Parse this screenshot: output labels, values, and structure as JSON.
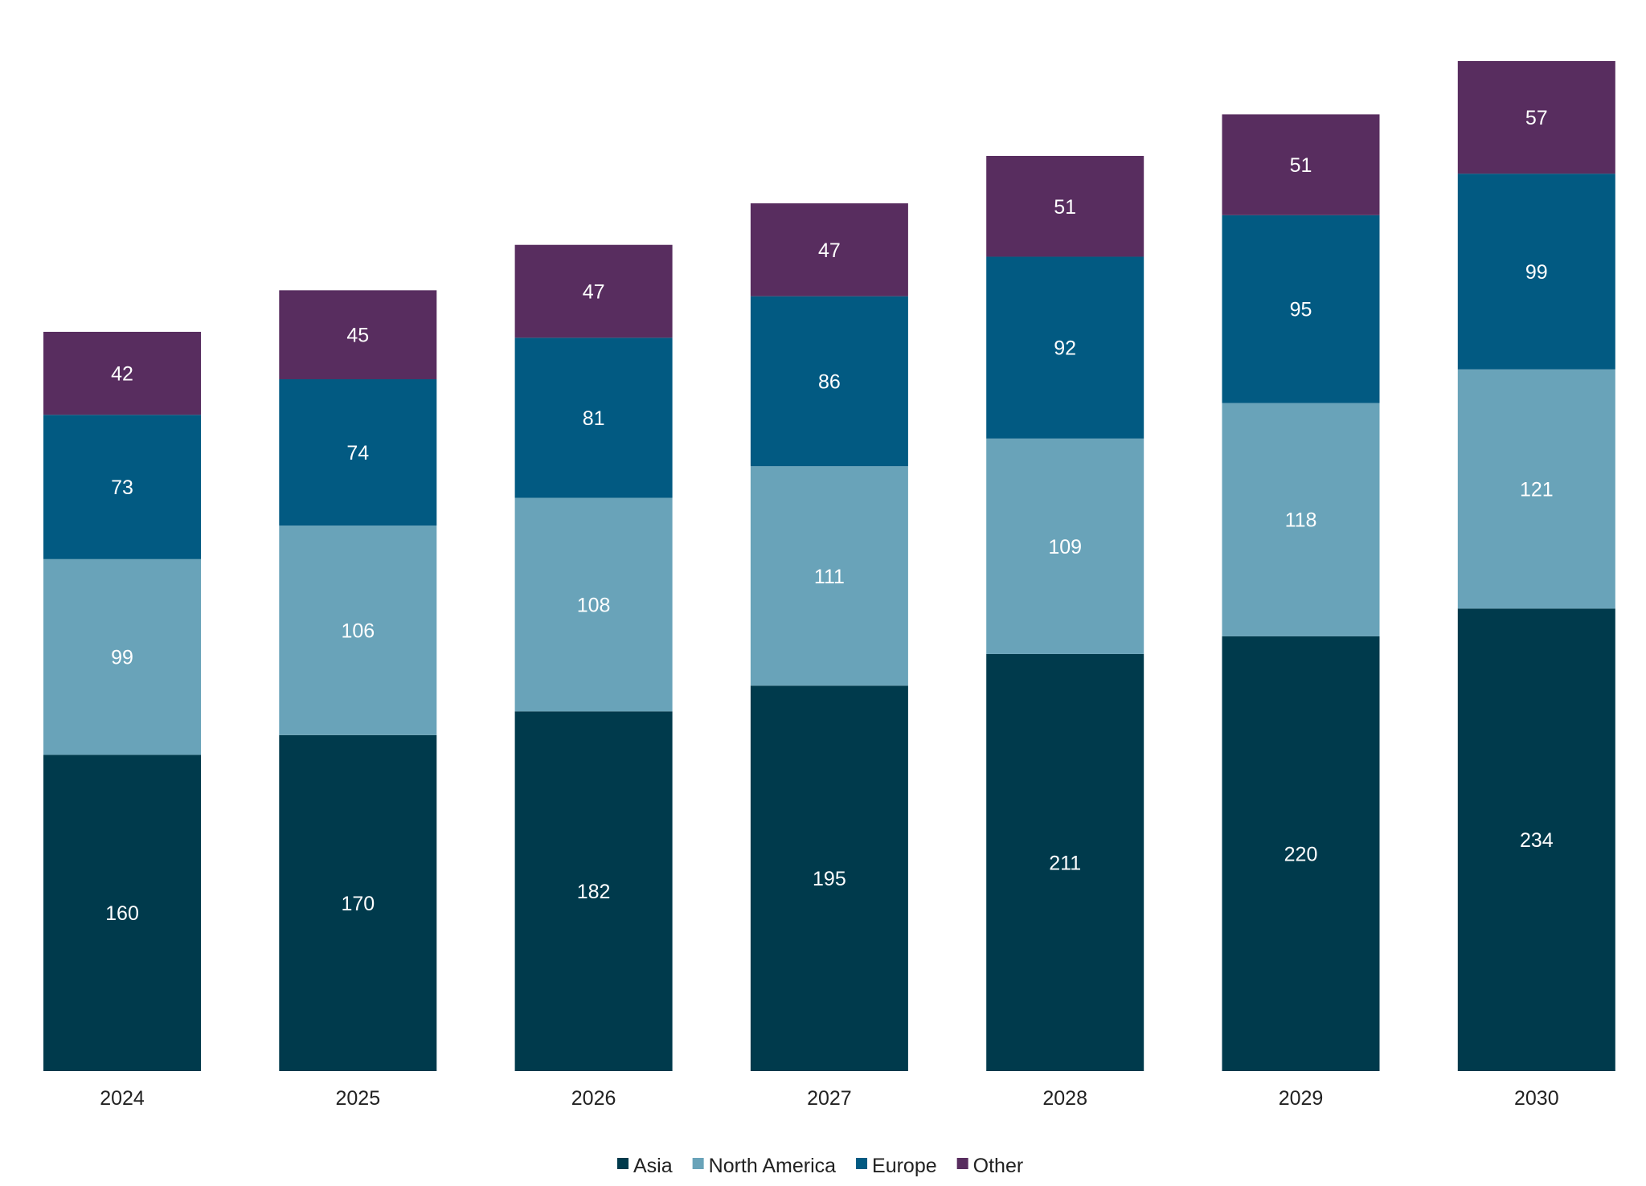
{
  "chart_data": {
    "type": "bar",
    "stacked": true,
    "title": "",
    "xlabel": "",
    "ylabel": "",
    "categories": [
      "2024",
      "2025",
      "2026",
      "2027",
      "2028",
      "2029",
      "2030"
    ],
    "series": [
      {
        "name": "Asia",
        "color": "#003a4c",
        "values": [
          160,
          170,
          182,
          195,
          211,
          220,
          234
        ]
      },
      {
        "name": "North America",
        "color": "#69a3b9",
        "values": [
          99,
          106,
          108,
          111,
          109,
          118,
          121
        ]
      },
      {
        "name": "Europe",
        "color": "#025a82",
        "values": [
          73,
          74,
          81,
          86,
          92,
          95,
          99
        ]
      },
      {
        "name": "Other",
        "color": "#582d5f",
        "values": [
          42,
          45,
          47,
          47,
          51,
          51,
          57
        ]
      }
    ],
    "data_labels": true,
    "y_axis_visible": false,
    "grid": false,
    "legend_position": "bottom"
  }
}
